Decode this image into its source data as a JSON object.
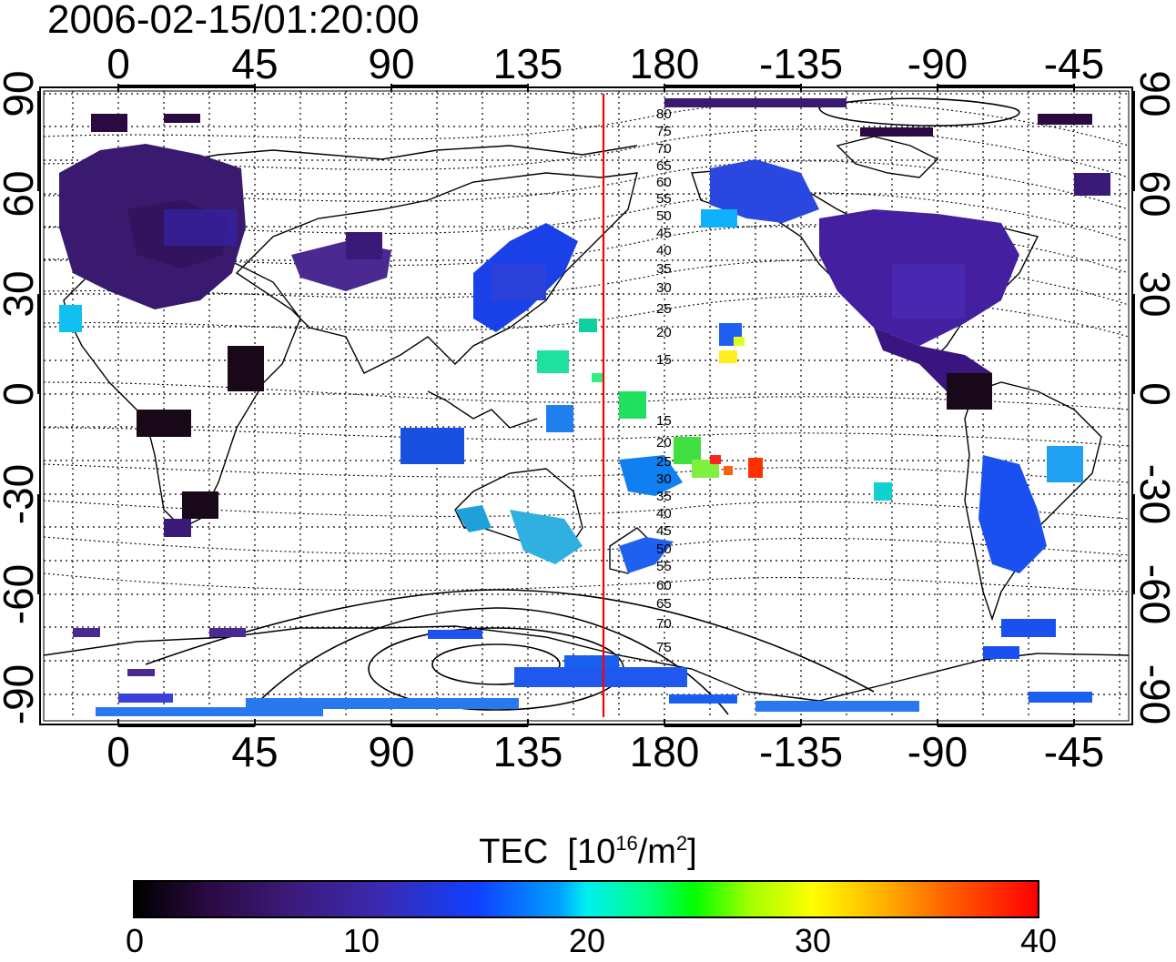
{
  "timestamp": "2006-02-15/01:20:00",
  "map": {
    "top_lon_ticks": [
      "0",
      "45",
      "90",
      "135",
      "180",
      "-135",
      "-90",
      "-45"
    ],
    "bottom_lon_ticks": [
      "0",
      "45",
      "90",
      "135",
      "180",
      "-135",
      "-90",
      "-45"
    ],
    "left_lat_ticks": [
      "90",
      "60",
      "30",
      "0",
      "-30",
      "-60",
      "-90"
    ],
    "right_lat_ticks": [
      "90",
      "60",
      "30",
      "0",
      "-30",
      "-60",
      "-90"
    ],
    "reference_meridian_color": "#ff0000",
    "contour_labels_north": [
      "80",
      "75",
      "70",
      "65",
      "60",
      "55",
      "50",
      "45",
      "40",
      "35",
      "30",
      "25",
      "20",
      "15"
    ],
    "contour_labels_south": [
      "15",
      "20",
      "25",
      "30",
      "35",
      "40",
      "45",
      "50",
      "55",
      "60",
      "65",
      "70",
      "75"
    ]
  },
  "colorbar": {
    "title_main": "TEC",
    "title_unit_prefix": "[10",
    "title_unit_exp": "16",
    "title_unit_mid": "/m",
    "title_unit_exp2": "2",
    "title_unit_suffix": "]",
    "min": 0,
    "max": 40,
    "tick_labels": [
      "0",
      "10",
      "20",
      "30",
      "40"
    ],
    "colors": [
      "#000000",
      "#3b1a78",
      "#1040ff",
      "#00f0f0",
      "#00ff00",
      "#ffff00",
      "#ff0000"
    ]
  }
}
